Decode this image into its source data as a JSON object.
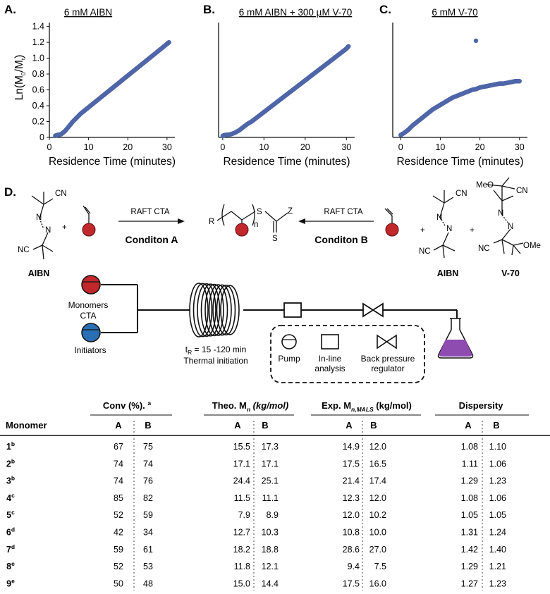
{
  "panels": [
    {
      "letter": "A.",
      "title": "6 mM AIBN"
    },
    {
      "letter": "B.",
      "title": "6 mM AIBN + 300 µM V-70"
    },
    {
      "letter": "C.",
      "title": "6 mM V-70"
    }
  ],
  "chart_data": [
    {
      "type": "scatter",
      "title": "6 mM AIBN",
      "xlabel": "Residence Time (minutes)",
      "ylabel": "Ln(M0/Mt)",
      "xlim": [
        0,
        32
      ],
      "ylim": [
        0,
        1.45
      ],
      "xticks": [
        "0",
        "10",
        "20",
        "30"
      ],
      "yticks": [
        "0",
        "0.2",
        "0.4",
        "0.6",
        "0.8",
        "1.0",
        "1.2",
        "1.4"
      ],
      "x": [
        1.5,
        2,
        3,
        4,
        5,
        6,
        7,
        8,
        9,
        10,
        11,
        12,
        13,
        14,
        15,
        16,
        17,
        18,
        19,
        20,
        21,
        22,
        23,
        24,
        25,
        26,
        27,
        28,
        29,
        30,
        30.5
      ],
      "y": [
        0.02,
        0.03,
        0.04,
        0.08,
        0.14,
        0.2,
        0.25,
        0.3,
        0.34,
        0.38,
        0.42,
        0.46,
        0.5,
        0.54,
        0.58,
        0.62,
        0.66,
        0.7,
        0.74,
        0.78,
        0.82,
        0.86,
        0.9,
        0.94,
        0.98,
        1.02,
        1.06,
        1.1,
        1.14,
        1.18,
        1.2
      ]
    },
    {
      "type": "scatter",
      "title": "6 mM AIBN + 300 µM V-70",
      "xlabel": "Residence Time (minutes)",
      "ylabel": "",
      "xlim": [
        -1,
        32
      ],
      "ylim": [
        0,
        1.45
      ],
      "xticks": [
        "0",
        "10",
        "20",
        "30"
      ],
      "x": [
        0,
        0.5,
        2,
        3,
        4,
        5,
        6,
        7,
        8,
        9,
        10,
        11,
        12,
        13,
        14,
        15,
        16,
        17,
        18,
        19,
        20,
        21,
        22,
        23,
        24,
        25,
        26,
        27,
        28,
        29,
        30,
        30.5
      ],
      "y": [
        0.02,
        0.03,
        0.04,
        0.06,
        0.09,
        0.13,
        0.17,
        0.2,
        0.24,
        0.28,
        0.32,
        0.36,
        0.4,
        0.44,
        0.48,
        0.52,
        0.56,
        0.6,
        0.64,
        0.68,
        0.72,
        0.76,
        0.8,
        0.84,
        0.88,
        0.92,
        0.96,
        1.0,
        1.04,
        1.08,
        1.12,
        1.15
      ]
    },
    {
      "type": "scatter",
      "title": "6 mM V-70",
      "xlabel": "Residence Time (minutes)",
      "ylabel": "",
      "xlim": [
        -2,
        32
      ],
      "ylim": [
        0,
        1.45
      ],
      "xticks": [
        "0",
        "10",
        "20",
        "30"
      ],
      "x": [
        0,
        1,
        2,
        3,
        4,
        5,
        6,
        7,
        8,
        9,
        10,
        11,
        12,
        13,
        14,
        15,
        16,
        17,
        18,
        19,
        20,
        21,
        22,
        23,
        24,
        25,
        26,
        27,
        28,
        29,
        30
      ],
      "y": [
        0.03,
        0.06,
        0.1,
        0.15,
        0.19,
        0.23,
        0.27,
        0.31,
        0.35,
        0.38,
        0.41,
        0.44,
        0.47,
        0.5,
        0.52,
        0.54,
        0.56,
        0.58,
        0.6,
        0.61,
        0.63,
        0.64,
        0.65,
        0.66,
        0.67,
        0.68,
        0.68,
        0.69,
        0.7,
        0.71,
        0.71
      ],
      "outlier": {
        "x": 19,
        "y": 1.22
      }
    }
  ],
  "scheme": {
    "label": "D.",
    "aibn_name": "AIBN",
    "v70_name": "V-70",
    "cn": "CN",
    "nc": "NC",
    "meo": "MeO",
    "ome": "OMe",
    "n_atom": "N",
    "plus": "+",
    "r": "R",
    "s": "S",
    "z": "Z",
    "n_sub": "n",
    "raft": "RAFT CTA",
    "cond_a": "Conditon A",
    "cond_b": "Conditon B",
    "monomers": "Monomers",
    "cta": "CTA",
    "initiators": "Initiators",
    "tr_main": "t",
    "tr_sub": "R",
    "tr_rest": " = 15 -120 min",
    "thermal": "Thermal initiation",
    "legend_pump": "Pump",
    "legend_inline_1": "In-line",
    "legend_inline_2": "analysis",
    "legend_bpr_1": "Back pressure",
    "legend_bpr_2": "regulator",
    "colors": {
      "monomer": "#c0282c",
      "initiator": "#2a6fb3",
      "flask": "#8e4bb0",
      "scatter": "#4f66a8"
    }
  },
  "table": {
    "group_headers": {
      "conv": "Conv (%).",
      "conv_sup": "a",
      "theo": "Theo. M",
      "theo_sub": "n",
      "theo_unit": " (kg/mol)",
      "exp": "Exp. M",
      "exp_sub": "n,MALS",
      "exp_unit": " (kg/mol)",
      "disp": "Dispersity"
    },
    "monomer_header": "Monomer",
    "a": "A",
    "b": "B",
    "rows": [
      {
        "m": "1",
        "sup": "b",
        "ca": "67",
        "cb": "75",
        "ta": "15.5",
        "tb": "17.3",
        "ea": "14.9",
        "eb": "12.0",
        "da": "1.08",
        "db": "1.10"
      },
      {
        "m": "2",
        "sup": "b",
        "ca": "74",
        "cb": "74",
        "ta": "17.1",
        "tb": "17.1",
        "ea": "17.5",
        "eb": "16.5",
        "da": "1.11",
        "db": "1.06"
      },
      {
        "m": "3",
        "sup": "b",
        "ca": "74",
        "cb": "76",
        "ta": "24.4",
        "tb": "25.1",
        "ea": "21.4",
        "eb": "17.4",
        "da": "1.29",
        "db": "1.23"
      },
      {
        "m": "4",
        "sup": "c",
        "ca": "85",
        "cb": "82",
        "ta": "11.5",
        "tb": "11.1",
        "ea": "12.3",
        "eb": "12.0",
        "da": "1.08",
        "db": "1.06"
      },
      {
        "m": "5",
        "sup": "c",
        "ca": "52",
        "cb": "59",
        "ta": "7.9",
        "tb": "8.9",
        "ea": "12.0",
        "eb": "10.2",
        "da": "1.05",
        "db": "1.05"
      },
      {
        "m": "6",
        "sup": "d",
        "ca": "42",
        "cb": "34",
        "ta": "12.7",
        "tb": "10.3",
        "ea": "10.8",
        "eb": "10.0",
        "da": "1.31",
        "db": "1.24"
      },
      {
        "m": "7",
        "sup": "d",
        "ca": "59",
        "cb": "61",
        "ta": "18.2",
        "tb": "18.8",
        "ea": "28.6",
        "eb": "27.0",
        "da": "1.42",
        "db": "1.40"
      },
      {
        "m": "8",
        "sup": "e",
        "ca": "52",
        "cb": "53",
        "ta": "11.8",
        "tb": "12.1",
        "ea": "9.4",
        "eb": "7.5",
        "da": "1.29",
        "db": "1.21"
      },
      {
        "m": "9",
        "sup": "e",
        "ca": "50",
        "cb": "48",
        "ta": "15.0",
        "tb": "14.4",
        "ea": "17.5",
        "eb": "16.0",
        "da": "1.27",
        "db": "1.23"
      }
    ]
  }
}
